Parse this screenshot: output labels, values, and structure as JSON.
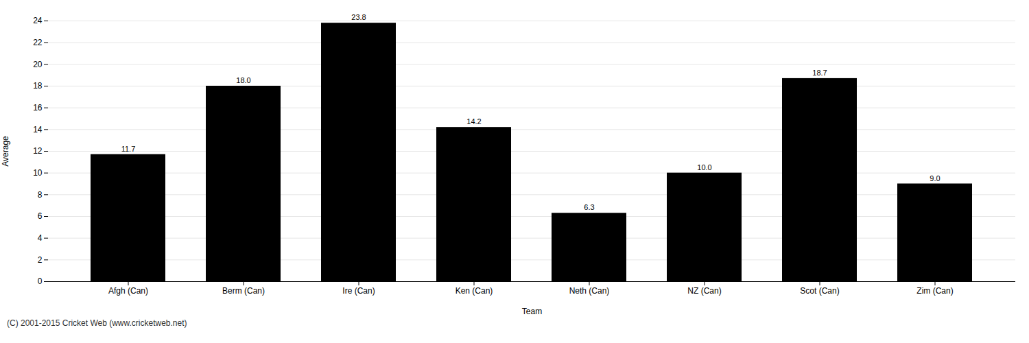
{
  "chart_data": {
    "type": "bar",
    "xlabel": "Team",
    "ylabel": "Average",
    "categories": [
      "Afgh (Can)",
      "Berm (Can)",
      "Ire (Can)",
      "Ken (Can)",
      "Neth (Can)",
      "NZ (Can)",
      "Scot (Can)",
      "Zim (Can)"
    ],
    "values": [
      11.7,
      18.0,
      23.8,
      14.2,
      6.3,
      10.0,
      18.7,
      9.0
    ],
    "value_labels": [
      "11.7",
      "18.0",
      "23.8",
      "14.2",
      "6.3",
      "10.0",
      "18.7",
      "9.0"
    ],
    "data_labels": true,
    "ylim": [
      0,
      24
    ],
    "yticks": [
      0,
      2,
      4,
      6,
      8,
      10,
      12,
      14,
      16,
      18,
      20,
      22,
      24
    ],
    "grid": true,
    "annotations": [
      "(C) 2001-2015 Cricket Web (www.cricketweb.net)"
    ]
  }
}
